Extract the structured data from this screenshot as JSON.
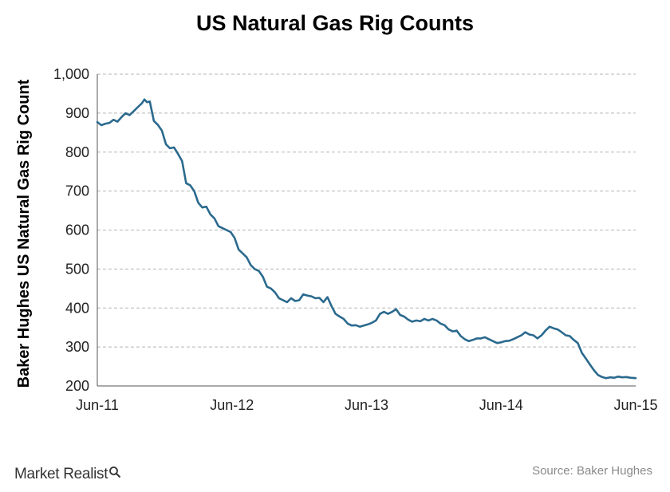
{
  "chart_data": {
    "type": "line",
    "title": "US Natural Gas Rig Counts",
    "ylabel": "Baker Hughes US Natural Gas Rig Count",
    "xlabel": "",
    "ylim": [
      200,
      1000
    ],
    "yticks": [
      "200",
      "300",
      "400",
      "500",
      "600",
      "700",
      "800",
      "900",
      "1,000"
    ],
    "ytick_values": [
      200,
      300,
      400,
      500,
      600,
      700,
      800,
      900,
      1000
    ],
    "xticks": [
      "Jun-11",
      "Jun-12",
      "Jun-13",
      "Jun-14",
      "Jun-15"
    ],
    "xtick_values": [
      0,
      1,
      2,
      3,
      4
    ],
    "grid": "horizontal-dashed",
    "series_color": "#2b6a8e",
    "series": [
      {
        "name": "",
        "points": [
          [
            0.0,
            877
          ],
          [
            0.03,
            869
          ],
          [
            0.06,
            873
          ],
          [
            0.09,
            875
          ],
          [
            0.12,
            883
          ],
          [
            0.15,
            878
          ],
          [
            0.18,
            890
          ],
          [
            0.21,
            900
          ],
          [
            0.24,
            895
          ],
          [
            0.27,
            905
          ],
          [
            0.3,
            915
          ],
          [
            0.33,
            925
          ],
          [
            0.35,
            935
          ],
          [
            0.37,
            928
          ],
          [
            0.39,
            930
          ],
          [
            0.42,
            880
          ],
          [
            0.45,
            870
          ],
          [
            0.48,
            855
          ],
          [
            0.51,
            820
          ],
          [
            0.54,
            810
          ],
          [
            0.57,
            812
          ],
          [
            0.6,
            795
          ],
          [
            0.63,
            777
          ],
          [
            0.66,
            720
          ],
          [
            0.69,
            715
          ],
          [
            0.72,
            700
          ],
          [
            0.75,
            670
          ],
          [
            0.78,
            658
          ],
          [
            0.81,
            660
          ],
          [
            0.84,
            640
          ],
          [
            0.87,
            630
          ],
          [
            0.9,
            610
          ],
          [
            0.93,
            605
          ],
          [
            0.96,
            600
          ],
          [
            0.99,
            595
          ],
          [
            1.02,
            580
          ],
          [
            1.05,
            550
          ],
          [
            1.08,
            540
          ],
          [
            1.11,
            530
          ],
          [
            1.14,
            510
          ],
          [
            1.17,
            500
          ],
          [
            1.2,
            495
          ],
          [
            1.23,
            480
          ],
          [
            1.26,
            455
          ],
          [
            1.29,
            450
          ],
          [
            1.32,
            440
          ],
          [
            1.35,
            425
          ],
          [
            1.38,
            420
          ],
          [
            1.41,
            415
          ],
          [
            1.44,
            425
          ],
          [
            1.47,
            418
          ],
          [
            1.5,
            420
          ],
          [
            1.53,
            435
          ],
          [
            1.56,
            432
          ],
          [
            1.59,
            430
          ],
          [
            1.62,
            425
          ],
          [
            1.65,
            426
          ],
          [
            1.68,
            415
          ],
          [
            1.71,
            428
          ],
          [
            1.74,
            405
          ],
          [
            1.77,
            385
          ],
          [
            1.8,
            378
          ],
          [
            1.83,
            372
          ],
          [
            1.86,
            360
          ],
          [
            1.89,
            355
          ],
          [
            1.92,
            356
          ],
          [
            1.95,
            352
          ],
          [
            1.98,
            355
          ],
          [
            2.01,
            358
          ],
          [
            2.04,
            362
          ],
          [
            2.07,
            368
          ],
          [
            2.1,
            385
          ],
          [
            2.13,
            390
          ],
          [
            2.16,
            385
          ],
          [
            2.19,
            390
          ],
          [
            2.22,
            397
          ],
          [
            2.25,
            382
          ],
          [
            2.28,
            378
          ],
          [
            2.31,
            370
          ],
          [
            2.34,
            365
          ],
          [
            2.37,
            368
          ],
          [
            2.4,
            366
          ],
          [
            2.43,
            372
          ],
          [
            2.46,
            368
          ],
          [
            2.49,
            372
          ],
          [
            2.52,
            368
          ],
          [
            2.55,
            360
          ],
          [
            2.58,
            356
          ],
          [
            2.61,
            345
          ],
          [
            2.64,
            340
          ],
          [
            2.67,
            342
          ],
          [
            2.7,
            328
          ],
          [
            2.73,
            320
          ],
          [
            2.76,
            315
          ],
          [
            2.79,
            318
          ],
          [
            2.82,
            322
          ],
          [
            2.85,
            322
          ],
          [
            2.88,
            325
          ],
          [
            2.91,
            320
          ],
          [
            2.94,
            315
          ],
          [
            2.97,
            310
          ],
          [
            3.0,
            312
          ],
          [
            3.03,
            315
          ],
          [
            3.06,
            316
          ],
          [
            3.09,
            320
          ],
          [
            3.12,
            325
          ],
          [
            3.15,
            330
          ],
          [
            3.18,
            338
          ],
          [
            3.21,
            332
          ],
          [
            3.24,
            330
          ],
          [
            3.27,
            322
          ],
          [
            3.3,
            330
          ],
          [
            3.33,
            342
          ],
          [
            3.36,
            352
          ],
          [
            3.39,
            348
          ],
          [
            3.42,
            345
          ],
          [
            3.45,
            338
          ],
          [
            3.48,
            330
          ],
          [
            3.51,
            328
          ],
          [
            3.54,
            318
          ],
          [
            3.57,
            310
          ],
          [
            3.6,
            285
          ],
          [
            3.63,
            270
          ],
          [
            3.66,
            255
          ],
          [
            3.69,
            240
          ],
          [
            3.72,
            228
          ],
          [
            3.75,
            223
          ],
          [
            3.78,
            220
          ],
          [
            3.81,
            222
          ],
          [
            3.84,
            221
          ],
          [
            3.87,
            224
          ],
          [
            3.9,
            222
          ],
          [
            3.93,
            223
          ],
          [
            3.96,
            221
          ],
          [
            4.0,
            220
          ]
        ]
      }
    ]
  },
  "footer": {
    "brand": "Market Realist",
    "source": "Source: Baker Hughes"
  }
}
